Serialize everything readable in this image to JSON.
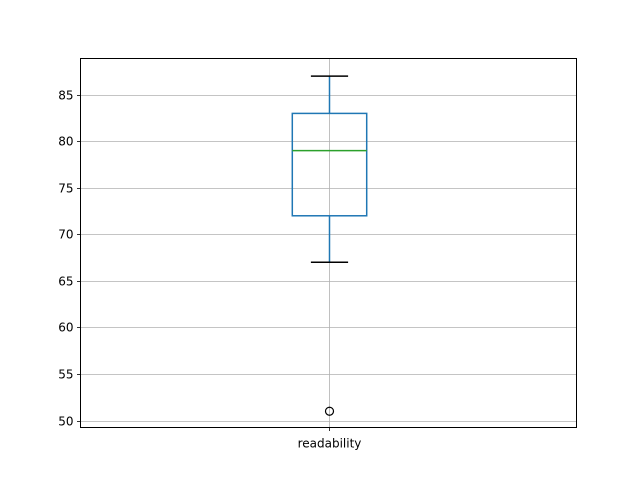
{
  "chart_data": {
    "type": "box",
    "categories": [
      "readability"
    ],
    "series": [
      {
        "whisker_low": 67,
        "q1": 72,
        "median": 79,
        "q3": 83,
        "whisker_high": 87,
        "outliers": [
          51
        ]
      }
    ],
    "title": "",
    "xlabel": "",
    "ylabel": "",
    "ylim": [
      49.25,
      88.9
    ],
    "yticks": [
      50,
      55,
      60,
      65,
      70,
      75,
      80,
      85
    ],
    "grid": true,
    "colors": {
      "box": "#1f77b4",
      "median": "#2ca02c",
      "caps": "#000000",
      "grid": "#b0b0b0",
      "outlier": "#000000"
    }
  }
}
